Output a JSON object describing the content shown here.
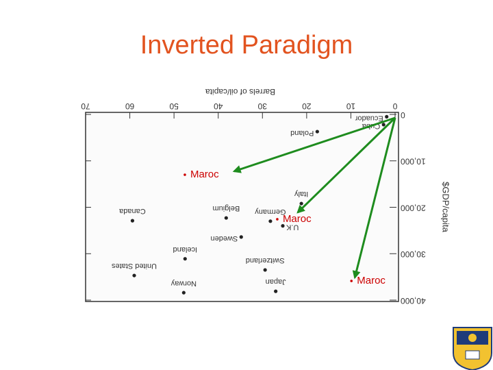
{
  "chart_data": {
    "type": "scatter",
    "title": "Inverted Paradigm",
    "xlabel": "Barrels of oil/capita",
    "ylabel": "$GDP/capita",
    "xlim": [
      70,
      0
    ],
    "xticks": [
      0,
      10,
      20,
      30,
      40,
      50,
      60,
      70
    ],
    "ylim": [
      40000,
      0
    ],
    "yticks": [
      0,
      {
        "value": 10000,
        "label": "10,000"
      },
      {
        "value": 20000,
        "label": "20,000"
      },
      {
        "value": 30000,
        "label": "30,000"
      },
      {
        "value": 40000,
        "label": "40,000"
      }
    ],
    "color": "#222222",
    "points": {
      "labels": [
        "Ecuador",
        "Cuba",
        "Poland",
        "Italy",
        "Belgium",
        "Germany",
        "U.K",
        "Canada",
        "Sweden",
        "Iceland",
        "Switzerland",
        "United States",
        "Norway",
        "Japan"
      ],
      "x": [
        1.9,
        2.6,
        17.6,
        21.2,
        38.2,
        28.2,
        25.4,
        59.4,
        34.8,
        47.5,
        29.4,
        59,
        47.8,
        27
      ],
      "y": [
        500,
        2200,
        3700,
        19200,
        22300,
        23000,
        24000,
        22900,
        26400,
        31100,
        33500,
        34700,
        38400,
        38100
      ]
    },
    "annotations": {
      "labels": [
        "Maroc",
        "Maroc",
        "Maroc"
      ],
      "x": [
        36.4,
        22,
        9.1
      ],
      "y": [
        12250,
        21100,
        35130
      ],
      "color": "#cc0000",
      "arrow_color": "#1e8c1e"
    }
  }
}
